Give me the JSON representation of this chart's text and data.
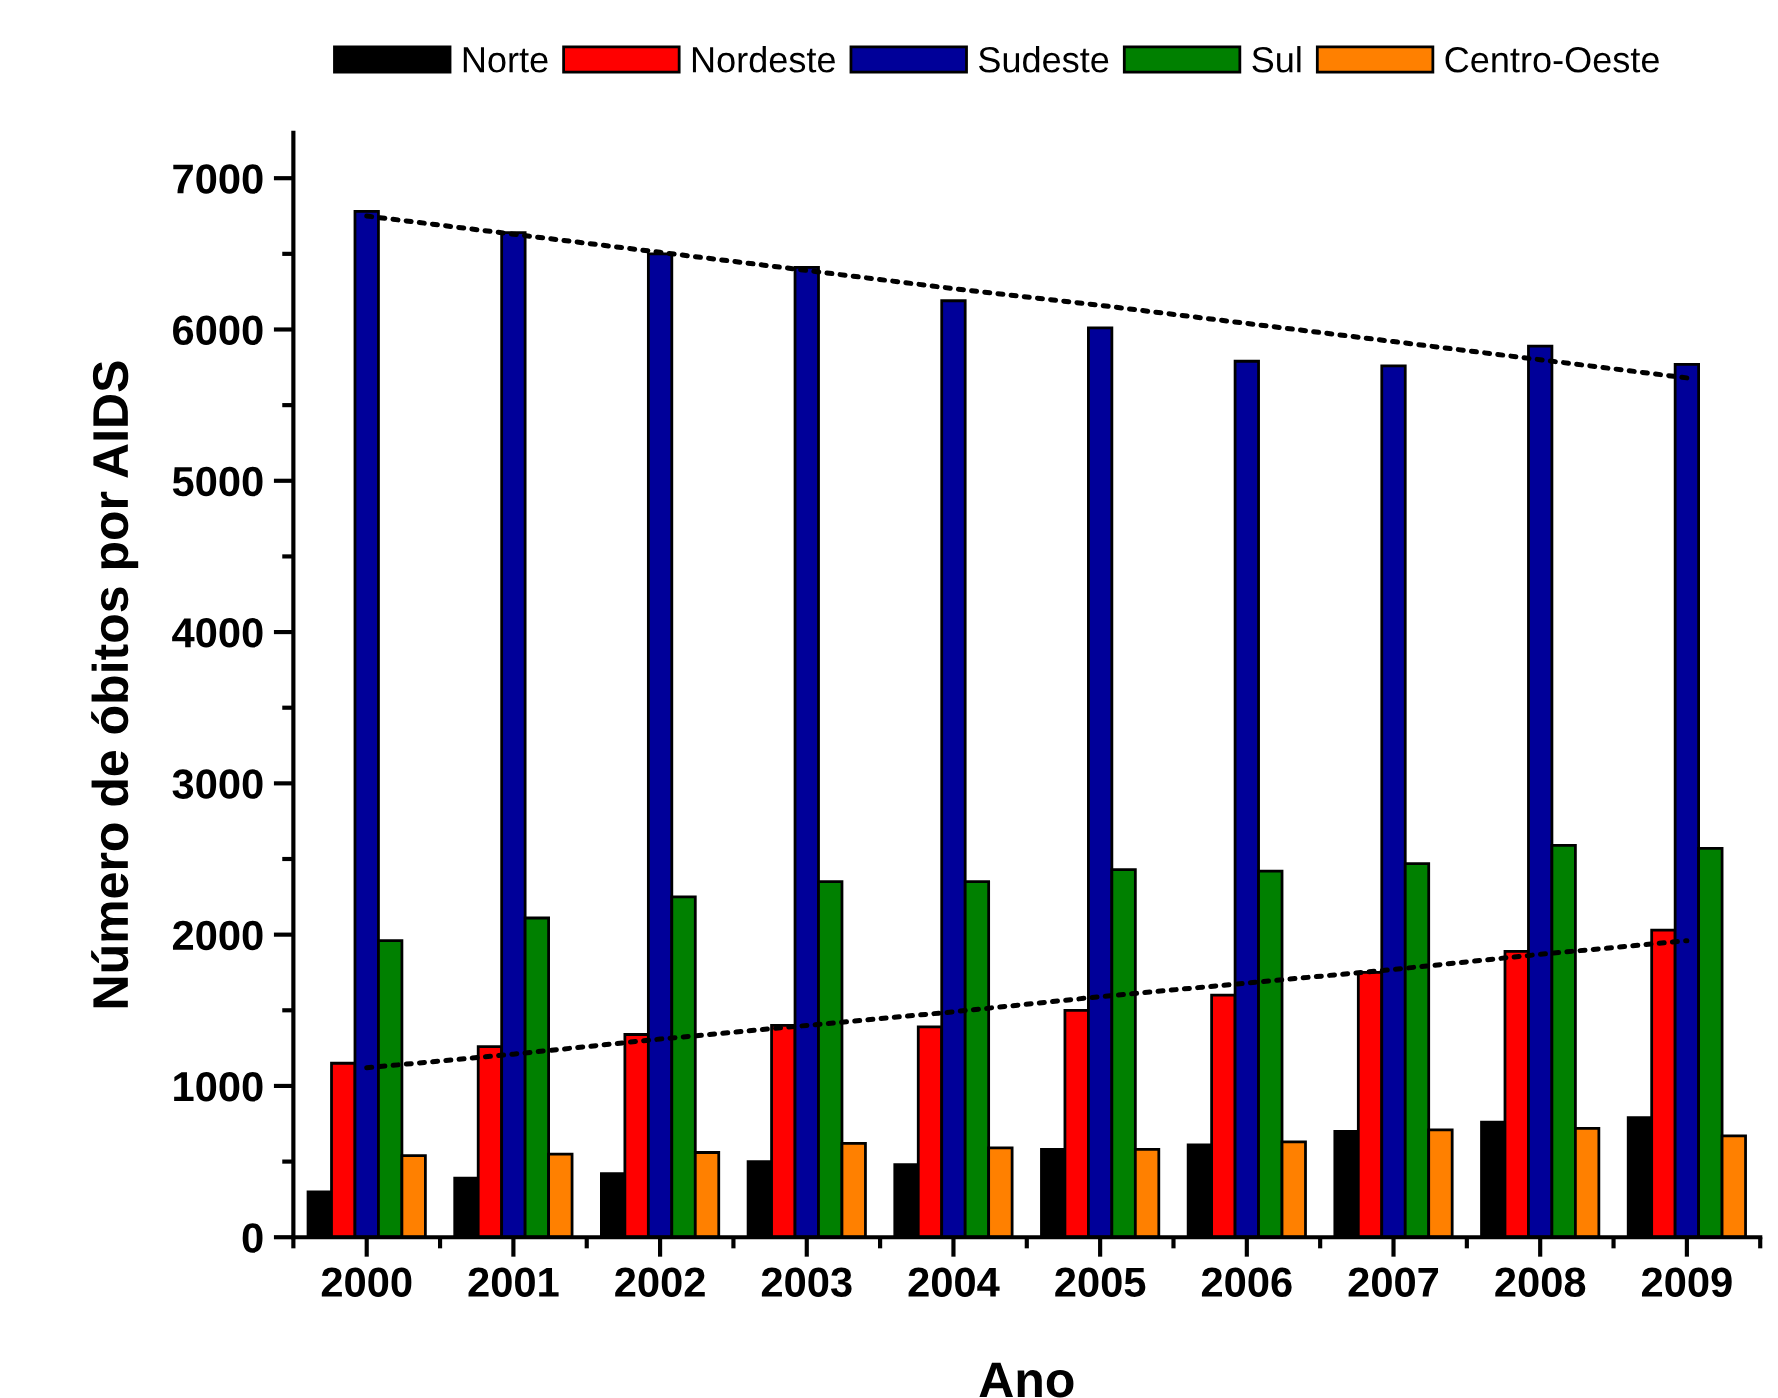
{
  "chart_data": {
    "type": "bar",
    "xlabel": "Ano",
    "ylabel": "Número de óbitos por AIDS",
    "categories": [
      "2000",
      "2001",
      "2002",
      "2003",
      "2004",
      "2005",
      "2006",
      "2007",
      "2008",
      "2009"
    ],
    "series": [
      {
        "name": "Norte",
        "color": "#000000",
        "values": [
          300,
          390,
          420,
          500,
          480,
          580,
          610,
          700,
          760,
          790
        ]
      },
      {
        "name": "Nordeste",
        "color": "#ff0000",
        "values": [
          1150,
          1260,
          1340,
          1400,
          1390,
          1500,
          1600,
          1750,
          1890,
          2030
        ]
      },
      {
        "name": "Sudeste",
        "color": "#000099",
        "values": [
          6780,
          6640,
          6500,
          6410,
          6190,
          6010,
          5790,
          5760,
          5890,
          5770
        ]
      },
      {
        "name": "Sul",
        "color": "#008000",
        "values": [
          1960,
          2110,
          2250,
          2350,
          2350,
          2430,
          2420,
          2470,
          2590,
          2570
        ]
      },
      {
        "name": "Centro-Oeste",
        "color": "#ff8000",
        "values": [
          540,
          550,
          560,
          620,
          590,
          580,
          630,
          710,
          720,
          670
        ]
      },
      {
        "type": "line",
        "color": "#000000",
        "line_style": "dotted",
        "values": [
          6750,
          6630,
          6510,
          6390,
          6270,
          6160,
          6040,
          5920,
          5800,
          5680
        ]
      },
      {
        "type": "line",
        "color": "#000000",
        "line_style": "dotted",
        "values": [
          1120,
          1210,
          1310,
          1400,
          1490,
          1590,
          1680,
          1770,
          1870,
          1960
        ]
      }
    ],
    "ylim": [
      0,
      7300
    ],
    "yticks": [
      0,
      1000,
      2000,
      3000,
      4000,
      5000,
      6000,
      7000
    ],
    "grid": false,
    "legend": "top"
  }
}
